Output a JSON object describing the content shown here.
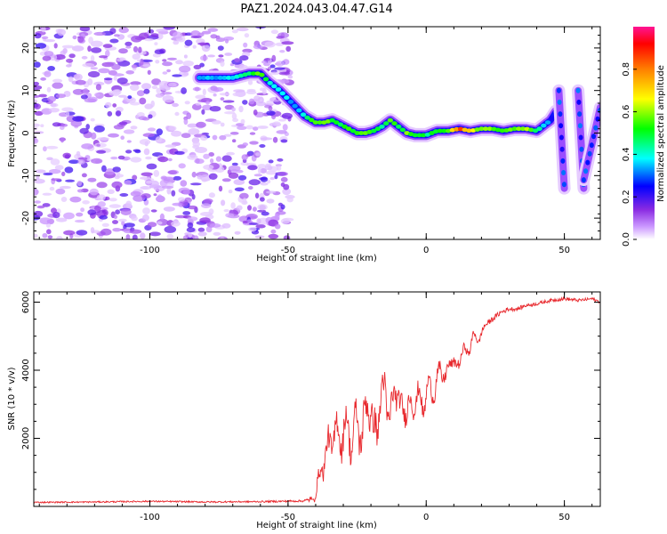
{
  "title": "PAZ1.2024.043.04.47.G14",
  "chart_data": [
    {
      "type": "heatmap",
      "name": "spectrogram",
      "xlabel": "Height of straight line (km)",
      "ylabel": "Frequency (Hz)",
      "xlim": [
        -142,
        63
      ],
      "ylim": [
        -25,
        25
      ],
      "xticks": [
        -100,
        -50,
        0,
        50
      ],
      "xtick_labels": [
        "-100",
        "-50",
        "0",
        "50"
      ],
      "yticks": [
        -20,
        -10,
        0,
        10,
        20
      ],
      "ytick_labels": [
        "-20",
        "-10",
        "0",
        "10",
        "20"
      ],
      "colorbar": {
        "label": "Normalized spectral amplitude",
        "range": [
          0,
          1
        ],
        "ticks": [
          0.0,
          0.2,
          0.4,
          0.6,
          0.8
        ],
        "tick_labels": [
          "0.0",
          "0.2",
          "0.4",
          "0.6",
          "0.8"
        ]
      },
      "main_track": {
        "x": [
          -82,
          -70,
          -64,
          -60,
          -57,
          -53,
          -50,
          -47,
          -44,
          -40,
          -37,
          -34,
          -31,
          -28,
          -25,
          -22,
          -19,
          -16,
          -13,
          -10,
          -7,
          -4,
          0,
          4,
          8,
          12,
          16,
          20,
          24,
          28,
          32,
          36,
          40,
          43,
          45,
          47
        ],
        "y": [
          13,
          13,
          14,
          14,
          12,
          10,
          8,
          6,
          4,
          2.5,
          2.5,
          3,
          2,
          1,
          0,
          0,
          0.5,
          1.5,
          3,
          1.5,
          0,
          -0.5,
          -0.5,
          0.5,
          0.5,
          1,
          0.5,
          1,
          1,
          0.5,
          1,
          1,
          0.5,
          2,
          3,
          5
        ],
        "amplitude": [
          0.35,
          0.4,
          0.5,
          0.6,
          0.45,
          0.45,
          0.4,
          0.35,
          0.45,
          0.6,
          0.65,
          0.55,
          0.5,
          0.6,
          0.55,
          0.6,
          0.55,
          0.5,
          0.6,
          0.55,
          0.6,
          0.55,
          0.5,
          0.55,
          0.6,
          0.9,
          0.7,
          0.6,
          0.65,
          0.55,
          0.6,
          0.7,
          0.5,
          0.4,
          0.3,
          0.2
        ]
      },
      "secondary_tracks": [
        {
          "x": [
            48,
            50
          ],
          "y": [
            10,
            -13
          ]
        },
        {
          "x": [
            55,
            57
          ],
          "y": [
            10,
            -13
          ]
        },
        {
          "x": [
            57,
            63
          ],
          "y": [
            -11,
            6
          ]
        }
      ]
    },
    {
      "type": "line",
      "name": "snr",
      "xlabel": "Height of straight line (km)",
      "ylabel": "SNR (10 * v/v)",
      "xlim": [
        -142,
        63
      ],
      "ylim": [
        0,
        6300
      ],
      "xticks": [
        -100,
        -50,
        0,
        50
      ],
      "xtick_labels": [
        "-100",
        "-50",
        "0",
        "50"
      ],
      "yticks": [
        2000,
        4000,
        6000
      ],
      "ytick_labels": [
        "2000",
        "4000",
        "6000"
      ],
      "color": "#e8292e",
      "x": [
        -142,
        -120,
        -100,
        -80,
        -60,
        -45,
        -41,
        -39,
        -37,
        -35,
        -33,
        -31,
        -29,
        -27,
        -25,
        -23,
        -21,
        -19,
        -17,
        -15,
        -13,
        -11,
        -9,
        -7,
        -5,
        -3,
        -1,
        1,
        3,
        5,
        7,
        9,
        11,
        13,
        15,
        17,
        19,
        21,
        24,
        27,
        30,
        33,
        36,
        40,
        45,
        50,
        55,
        60,
        63
      ],
      "y": [
        120,
        130,
        150,
        130,
        140,
        160,
        200,
        700,
        1400,
        1800,
        2200,
        2000,
        2400,
        1900,
        2500,
        2100,
        3300,
        2000,
        2900,
        3500,
        2500,
        3600,
        2700,
        3000,
        2900,
        3300,
        2900,
        3600,
        3300,
        4100,
        3700,
        4400,
        4000,
        4600,
        4500,
        5000,
        4900,
        5300,
        5500,
        5700,
        5800,
        5800,
        5900,
        5950,
        6050,
        6100,
        6050,
        6100,
        6000
      ],
      "noise_amplitude": [
        40,
        40,
        45,
        45,
        50,
        60,
        150,
        400,
        600,
        700,
        800,
        800,
        800,
        800,
        900,
        900,
        900,
        900,
        900,
        850,
        800,
        700,
        650,
        600,
        550,
        500,
        450,
        420,
        400,
        380,
        350,
        320,
        300,
        280,
        250,
        220,
        200,
        180,
        160,
        140,
        130,
        120,
        110,
        100,
        100,
        100,
        90,
        90,
        90
      ]
    }
  ]
}
